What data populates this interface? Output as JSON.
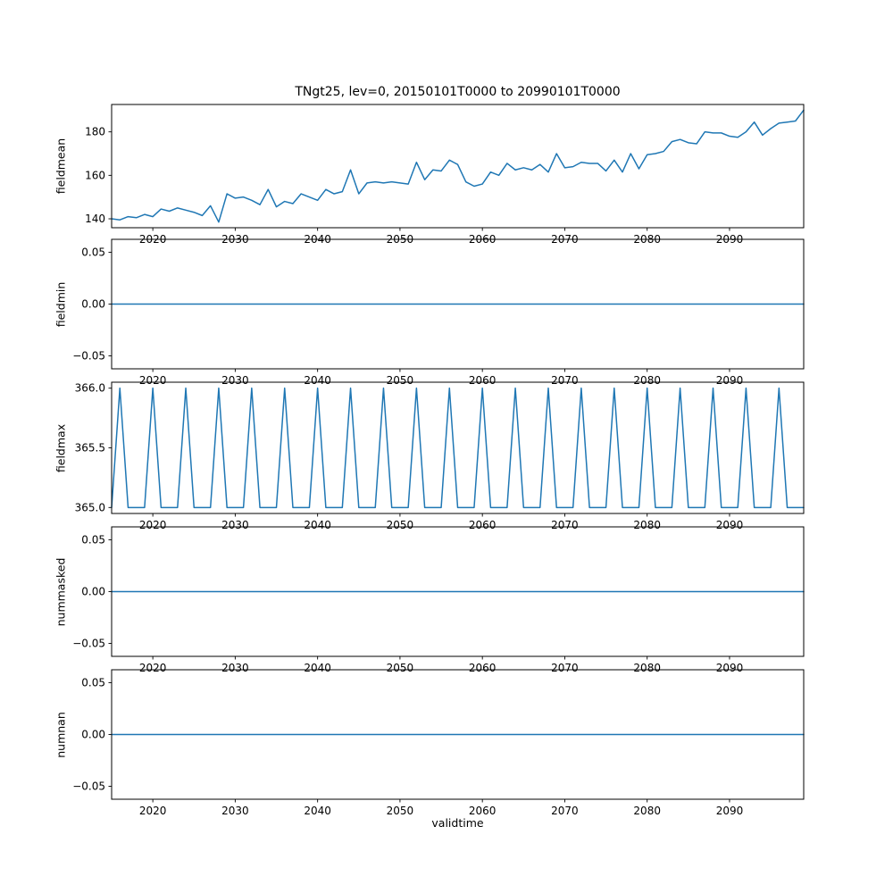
{
  "figure": {
    "title": "TNgt25, lev=0, 20150101T0000 to 20990101T0000",
    "xlabel": "validtime",
    "line_color": "#1f77b4",
    "background": "#ffffff"
  },
  "chart_data": [
    {
      "type": "line",
      "ylabel": "fieldmean",
      "x_start": 2015,
      "x_end": 2099,
      "x_step": 1,
      "values": [
        140,
        139.5,
        141,
        140.5,
        142,
        141,
        144.5,
        143.5,
        145,
        144,
        143,
        141.5,
        146,
        138.5,
        151.5,
        149.5,
        150,
        148.5,
        146.5,
        153.5,
        145.5,
        148,
        147,
        151.5,
        150,
        148.5,
        153.5,
        151.5,
        152.5,
        162.5,
        151.5,
        156.5,
        157,
        156.5,
        157,
        156.5,
        156,
        166,
        158,
        162.5,
        162,
        167,
        165,
        157,
        155,
        156,
        161.5,
        160,
        165.5,
        162.5,
        163.5,
        162.5,
        165,
        161.5,
        170,
        163.5,
        164,
        166,
        165.5,
        165.5,
        162,
        167,
        161.5,
        170,
        163,
        169.5,
        170,
        171,
        175.5,
        176.5,
        175,
        174.5,
        180,
        179.5,
        179.5,
        178,
        177.5,
        180,
        184.5,
        178.5,
        181.5,
        184,
        184.5,
        185,
        190
      ],
      "ylim": [
        135.9,
        192.6
      ],
      "yticks": [
        140,
        160,
        180
      ],
      "ytick_labels": [
        "140",
        "160",
        "180"
      ],
      "xticks": [
        2020,
        2030,
        2040,
        2050,
        2060,
        2070,
        2080,
        2090
      ],
      "xtick_labels": [
        "2020",
        "2030",
        "2040",
        "2050",
        "2060",
        "2070",
        "2080",
        "2090"
      ]
    },
    {
      "type": "line",
      "ylabel": "fieldmin",
      "x_start": 2015,
      "x_end": 2099,
      "x_step": 1,
      "values": [
        0,
        0,
        0,
        0,
        0,
        0,
        0,
        0,
        0,
        0,
        0,
        0,
        0,
        0,
        0,
        0,
        0,
        0,
        0,
        0,
        0,
        0,
        0,
        0,
        0,
        0,
        0,
        0,
        0,
        0,
        0,
        0,
        0,
        0,
        0,
        0,
        0,
        0,
        0,
        0,
        0,
        0,
        0,
        0,
        0,
        0,
        0,
        0,
        0,
        0,
        0,
        0,
        0,
        0,
        0,
        0,
        0,
        0,
        0,
        0,
        0,
        0,
        0,
        0,
        0,
        0,
        0,
        0,
        0,
        0,
        0,
        0,
        0,
        0,
        0,
        0,
        0,
        0,
        0,
        0,
        0,
        0,
        0,
        0,
        0
      ],
      "ylim": [
        -0.0625,
        0.0625
      ],
      "yticks": [
        -0.05,
        0,
        0.05
      ],
      "ytick_labels": [
        "−0.05",
        "0.00",
        "0.05"
      ],
      "xticks": [
        2020,
        2030,
        2040,
        2050,
        2060,
        2070,
        2080,
        2090
      ],
      "xtick_labels": [
        "2020",
        "2030",
        "2040",
        "2050",
        "2060",
        "2070",
        "2080",
        "2090"
      ]
    },
    {
      "type": "line",
      "ylabel": "fieldmax",
      "x_start": 2015,
      "x_end": 2099,
      "x_step": 1,
      "values": [
        365,
        366,
        365,
        365,
        365,
        366,
        365,
        365,
        365,
        366,
        365,
        365,
        365,
        366,
        365,
        365,
        365,
        366,
        365,
        365,
        365,
        366,
        365,
        365,
        365,
        366,
        365,
        365,
        365,
        366,
        365,
        365,
        365,
        366,
        365,
        365,
        365,
        366,
        365,
        365,
        365,
        366,
        365,
        365,
        365,
        366,
        365,
        365,
        365,
        366,
        365,
        365,
        365,
        366,
        365,
        365,
        365,
        366,
        365,
        365,
        365,
        366,
        365,
        365,
        365,
        366,
        365,
        365,
        365,
        366,
        365,
        365,
        365,
        366,
        365,
        365,
        365,
        366,
        365,
        365,
        365,
        366,
        365,
        365,
        365
      ],
      "ylim": [
        364.95,
        366.05
      ],
      "yticks": [
        365.0,
        365.5,
        366.0
      ],
      "ytick_labels": [
        "365.0",
        "365.5",
        "366.0"
      ],
      "xticks": [
        2020,
        2030,
        2040,
        2050,
        2060,
        2070,
        2080,
        2090
      ],
      "xtick_labels": [
        "2020",
        "2030",
        "2040",
        "2050",
        "2060",
        "2070",
        "2080",
        "2090"
      ]
    },
    {
      "type": "line",
      "ylabel": "nummasked",
      "x_start": 2015,
      "x_end": 2099,
      "x_step": 1,
      "values": [
        0,
        0,
        0,
        0,
        0,
        0,
        0,
        0,
        0,
        0,
        0,
        0,
        0,
        0,
        0,
        0,
        0,
        0,
        0,
        0,
        0,
        0,
        0,
        0,
        0,
        0,
        0,
        0,
        0,
        0,
        0,
        0,
        0,
        0,
        0,
        0,
        0,
        0,
        0,
        0,
        0,
        0,
        0,
        0,
        0,
        0,
        0,
        0,
        0,
        0,
        0,
        0,
        0,
        0,
        0,
        0,
        0,
        0,
        0,
        0,
        0,
        0,
        0,
        0,
        0,
        0,
        0,
        0,
        0,
        0,
        0,
        0,
        0,
        0,
        0,
        0,
        0,
        0,
        0,
        0,
        0,
        0,
        0,
        0,
        0
      ],
      "ylim": [
        -0.0625,
        0.0625
      ],
      "yticks": [
        -0.05,
        0,
        0.05
      ],
      "ytick_labels": [
        "−0.05",
        "0.00",
        "0.05"
      ],
      "xticks": [
        2020,
        2030,
        2040,
        2050,
        2060,
        2070,
        2080,
        2090
      ],
      "xtick_labels": [
        "2020",
        "2030",
        "2040",
        "2050",
        "2060",
        "2070",
        "2080",
        "2090"
      ]
    },
    {
      "type": "line",
      "ylabel": "numnan",
      "x_start": 2015,
      "x_end": 2099,
      "x_step": 1,
      "values": [
        0,
        0,
        0,
        0,
        0,
        0,
        0,
        0,
        0,
        0,
        0,
        0,
        0,
        0,
        0,
        0,
        0,
        0,
        0,
        0,
        0,
        0,
        0,
        0,
        0,
        0,
        0,
        0,
        0,
        0,
        0,
        0,
        0,
        0,
        0,
        0,
        0,
        0,
        0,
        0,
        0,
        0,
        0,
        0,
        0,
        0,
        0,
        0,
        0,
        0,
        0,
        0,
        0,
        0,
        0,
        0,
        0,
        0,
        0,
        0,
        0,
        0,
        0,
        0,
        0,
        0,
        0,
        0,
        0,
        0,
        0,
        0,
        0,
        0,
        0,
        0,
        0,
        0,
        0,
        0,
        0,
        0,
        0,
        0,
        0
      ],
      "ylim": [
        -0.0625,
        0.0625
      ],
      "yticks": [
        -0.05,
        0,
        0.05
      ],
      "ytick_labels": [
        "−0.05",
        "0.00",
        "0.05"
      ],
      "xticks": [
        2020,
        2030,
        2040,
        2050,
        2060,
        2070,
        2080,
        2090
      ],
      "xtick_labels": [
        "2020",
        "2030",
        "2040",
        "2050",
        "2060",
        "2070",
        "2080",
        "2090"
      ]
    }
  ]
}
